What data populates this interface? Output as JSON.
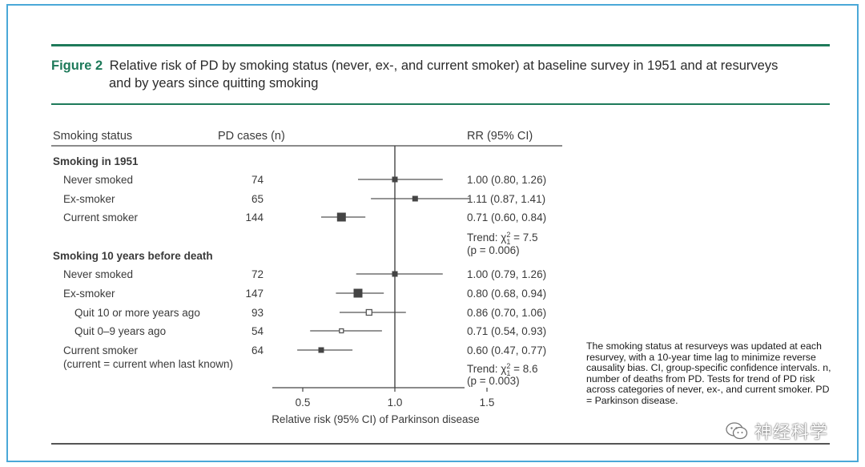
{
  "figure": {
    "label": "Figure 2",
    "title_line1": "Relative risk of PD by smoking status (never, ex-, and current smoker) at baseline survey in 1951 and at resurveys",
    "title_line2": "and by years since quitting smoking",
    "footnote": "The smoking status at resurveys was updated at each resurvey, with a 10-year time lag to minimize reverse causality bias. CI, group-specific confidence intervals. n, number of deaths from PD. Tests for trend of PD risk across categories of never, ex-, and current smoker. PD = Parkinson disease."
  },
  "watermark": {
    "text": "神经科学",
    "icon": "wechat-icon"
  },
  "chart_data": {
    "type": "forest",
    "headers": {
      "status": "Smoking status",
      "cases": "PD cases (n)",
      "rr": "RR (95% CI)"
    },
    "xlabel": "Relative risk (95% CI) of Parkinson disease",
    "xticks": [
      "0.5",
      "1.0",
      "1.5"
    ],
    "xlim": [
      0.35,
      1.6
    ],
    "reference_line": 1.0,
    "sections": [
      {
        "heading": "Smoking in 1951",
        "rows": [
          {
            "label": "Never smoked",
            "cases": "74",
            "rr": 1.0,
            "lo": 0.8,
            "hi": 1.26,
            "rr_text": "1.00 (0.80, 1.26)",
            "marker": "filled",
            "size": 7
          },
          {
            "label": "Ex-smoker",
            "cases": "65",
            "rr": 1.11,
            "lo": 0.87,
            "hi": 1.41,
            "rr_text": "1.11 (0.87, 1.41)",
            "marker": "filled",
            "size": 7
          },
          {
            "label": "Current smoker",
            "cases": "144",
            "rr": 0.71,
            "lo": 0.6,
            "hi": 0.84,
            "rr_text": "0.71 (0.60, 0.84)",
            "marker": "filled",
            "size": 11
          }
        ],
        "trend": {
          "prefix": "Trend: χ",
          "sub": "1",
          "sup": "2",
          "value": " = 7.5",
          "p": "(p = 0.006)"
        }
      },
      {
        "heading": "Smoking 10 years before death",
        "rows": [
          {
            "label": "Never smoked",
            "cases": "72",
            "rr": 1.0,
            "lo": 0.79,
            "hi": 1.26,
            "rr_text": "1.00 (0.79, 1.26)",
            "marker": "filled",
            "size": 7
          },
          {
            "label": "Ex-smoker",
            "cases": "147",
            "rr": 0.8,
            "lo": 0.68,
            "hi": 0.94,
            "rr_text": "0.80 (0.68, 0.94)",
            "marker": "filled",
            "size": 11
          },
          {
            "label": "Quit 10 or more years ago",
            "cases": "93",
            "rr": 0.86,
            "lo": 0.7,
            "hi": 1.06,
            "rr_text": "0.86 (0.70, 1.06)",
            "marker": "open",
            "size": 7,
            "indent": 2
          },
          {
            "label": "Quit 0–9 years ago",
            "cases": "54",
            "rr": 0.71,
            "lo": 0.54,
            "hi": 0.93,
            "rr_text": "0.71 (0.54, 0.93)",
            "marker": "open",
            "size": 5,
            "indent": 2
          },
          {
            "label": "Current smoker",
            "label2": "(current = current when last known)",
            "cases": "64",
            "rr": 0.6,
            "lo": 0.47,
            "hi": 0.77,
            "rr_text": "0.60 (0.47, 0.77)",
            "marker": "filled",
            "size": 7
          }
        ],
        "trend": {
          "prefix": "Trend: χ",
          "sub": "1",
          "sup": "2",
          "value": " = 8.6",
          "p": "(p = 0.003)"
        }
      }
    ]
  }
}
